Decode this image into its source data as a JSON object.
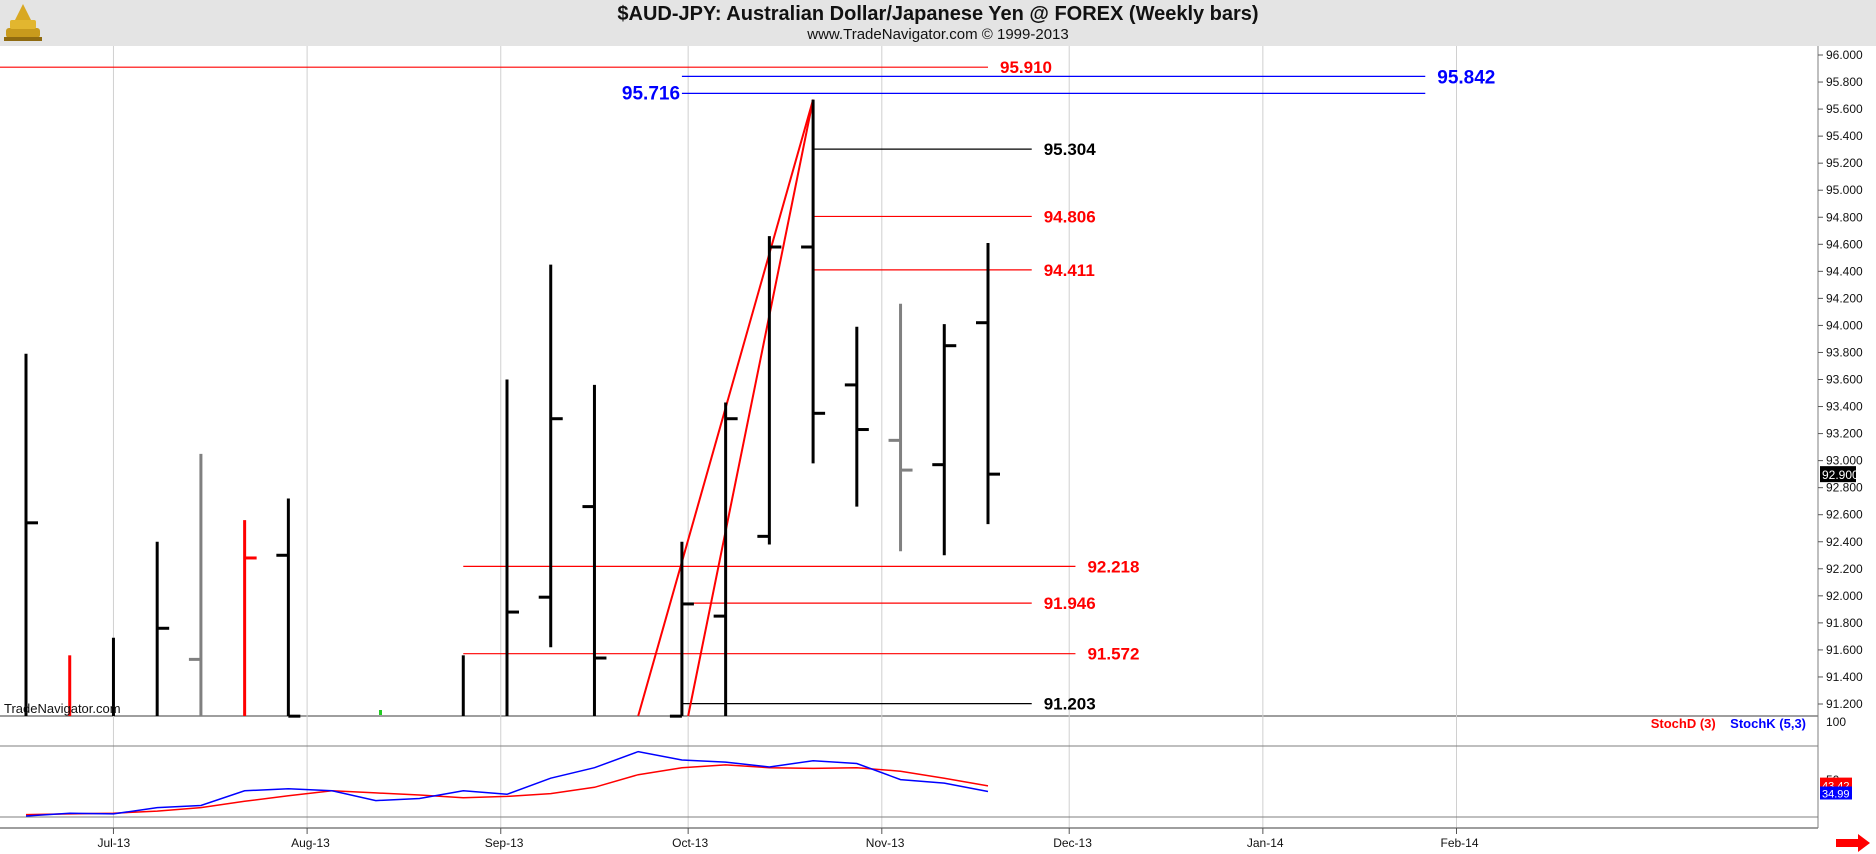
{
  "header": {
    "title": "$AUD-JPY:  Australian Dollar/Japanese Yen @ FOREX  (Weekly bars)",
    "subtitle": "www.TradeNavigator.com © 1999-2013"
  },
  "watermark": "TradeNavigator.com",
  "colors": {
    "bar": "#000000",
    "down_bar": "#ff0000",
    "neutral_bar": "#808080",
    "level_red": "#ff0000",
    "level_blue": "#0000ff",
    "level_black": "#000000",
    "header_bg": "#e4e4e4"
  },
  "indicator_legend": {
    "stoch_d": "StochD (3)",
    "stoch_k": "StochK (5,3)"
  },
  "chart_data": [
    {
      "type": "ohlc",
      "title": "$AUD-JPY:  Australian Dollar/Japanese Yen @ FOREX  (Weekly bars)",
      "x_tick_labels": [
        "Jul-13",
        "Aug-13",
        "Sep-13",
        "Oct-13",
        "Nov-13",
        "Dec-13",
        "Jan-14",
        "Feb-14"
      ],
      "y_tick_labels": [
        "96.000",
        "95.800",
        "95.600",
        "95.400",
        "95.200",
        "95.000",
        "94.800",
        "94.600",
        "94.400",
        "94.200",
        "94.000",
        "93.800",
        "93.600",
        "93.400",
        "93.200",
        "93.000",
        "92.800",
        "92.600",
        "92.400",
        "92.200",
        "92.000",
        "91.800",
        "91.600",
        "91.400",
        "91.200"
      ],
      "ylim": [
        91.08,
        96.08
      ],
      "last_price_label": "92.900",
      "bars": [
        {
          "week": "2013-06-17",
          "open": null,
          "high": 93.79,
          "low": 91.08,
          "close": 92.54,
          "color": "black"
        },
        {
          "week": "2013-06-24",
          "open": null,
          "high": 91.56,
          "low": 91.08,
          "close": null,
          "color": "red"
        },
        {
          "week": "2013-07-01",
          "open": null,
          "high": 91.69,
          "low": 91.08,
          "close": null,
          "color": "black"
        },
        {
          "week": "2013-07-08",
          "open": null,
          "high": 92.4,
          "low": 91.08,
          "close": 91.76,
          "color": "black"
        },
        {
          "week": "2013-07-15",
          "open": 91.53,
          "high": 93.05,
          "low": 91.08,
          "close": null,
          "color": "gray"
        },
        {
          "week": "2013-07-22",
          "open": null,
          "high": 92.56,
          "low": 91.08,
          "close": 92.28,
          "color": "red"
        },
        {
          "week": "2013-07-29",
          "open": 92.3,
          "high": 92.72,
          "low": 91.08,
          "close": 91.11,
          "color": "black"
        },
        {
          "week": "2013-08-26",
          "open": null,
          "high": 91.56,
          "low": 91.08,
          "close": null,
          "color": "black"
        },
        {
          "week": "2013-09-02",
          "open": null,
          "high": 93.6,
          "low": 91.08,
          "close": 91.88,
          "color": "black"
        },
        {
          "week": "2013-09-09",
          "open": 91.99,
          "high": 94.45,
          "low": 91.62,
          "close": 93.31,
          "color": "black"
        },
        {
          "week": "2013-09-16",
          "open": 92.66,
          "high": 93.56,
          "low": 91.08,
          "close": 91.54,
          "color": "black"
        },
        {
          "week": "2013-09-30",
          "open": 91.11,
          "high": 92.4,
          "low": 91.08,
          "close": 91.94,
          "color": "black"
        },
        {
          "week": "2013-10-07",
          "open": 91.85,
          "high": 93.43,
          "low": 91.08,
          "close": 93.31,
          "color": "black"
        },
        {
          "week": "2013-10-14",
          "open": 92.44,
          "high": 94.66,
          "low": 92.38,
          "close": 94.58,
          "color": "black"
        },
        {
          "week": "2013-10-21",
          "open": 94.58,
          "high": 95.67,
          "low": 92.98,
          "close": 93.35,
          "color": "black"
        },
        {
          "week": "2013-10-28",
          "open": 93.56,
          "high": 93.99,
          "low": 92.66,
          "close": 93.23,
          "color": "black"
        },
        {
          "week": "2013-11-04",
          "open": 93.15,
          "high": 94.16,
          "low": 92.33,
          "close": 92.93,
          "color": "gray"
        },
        {
          "week": "2013-11-11",
          "open": 92.97,
          "high": 94.01,
          "low": 92.3,
          "close": 93.85,
          "color": "black"
        },
        {
          "week": "2013-11-18",
          "open": 94.02,
          "high": 94.61,
          "low": 92.53,
          "close": 92.9,
          "color": "black"
        }
      ],
      "levels": [
        {
          "value": 95.91,
          "label": "95.910",
          "color": "red",
          "from": "2013-06-10",
          "to": "2013-11-18"
        },
        {
          "value": 95.842,
          "label": "95.842",
          "color": "blue",
          "from": "2013-09-30",
          "to": "2014-01-27"
        },
        {
          "value": 95.716,
          "label": "95.716",
          "color": "blue",
          "from": "2013-09-30",
          "to": "2014-01-27"
        },
        {
          "value": 95.304,
          "label": "95.304",
          "color": "black",
          "from": "2013-10-21",
          "to": "2013-11-25"
        },
        {
          "value": 94.806,
          "label": "94.806",
          "color": "red",
          "from": "2013-10-21",
          "to": "2013-11-25"
        },
        {
          "value": 94.411,
          "label": "94.411",
          "color": "red",
          "from": "2013-10-21",
          "to": "2013-11-25"
        },
        {
          "value": 92.218,
          "label": "92.218",
          "color": "red",
          "from": "2013-08-26",
          "to": "2013-12-02"
        },
        {
          "value": 91.946,
          "label": "91.946",
          "color": "red",
          "from": "2013-09-30",
          "to": "2013-11-25"
        },
        {
          "value": 91.572,
          "label": "91.572",
          "color": "red",
          "from": "2013-08-26",
          "to": "2013-12-02"
        },
        {
          "value": 91.203,
          "label": "91.203",
          "color": "black",
          "from": "2013-09-30",
          "to": "2013-11-25"
        }
      ],
      "trendlines": [
        {
          "from": [
            "2013-09-23",
            91.08
          ],
          "to": [
            "2013-10-21",
            95.67
          ],
          "color": "red"
        },
        {
          "from": [
            "2013-10-01",
            91.08
          ],
          "to": [
            "2013-10-21",
            95.67
          ],
          "color": "red"
        }
      ]
    },
    {
      "type": "line",
      "title": "Stochastic",
      "x_tick_labels": [
        "Jul-13",
        "Aug-13",
        "Sep-13",
        "Oct-13",
        "Nov-13",
        "Dec-13",
        "Jan-14",
        "Feb-14"
      ],
      "ylim": [
        0,
        100
      ],
      "y_tick_labels": [
        "100",
        "50"
      ],
      "last_value_labels": {
        "stoch_d": "43.42",
        "stoch_k": "34.99"
      },
      "series": [
        {
          "name": "StochD (3)",
          "color": "red",
          "x": [
            "2013-06-17",
            "2013-06-24",
            "2013-07-01",
            "2013-07-08",
            "2013-07-15",
            "2013-07-22",
            "2013-07-29",
            "2013-08-05",
            "2013-08-12",
            "2013-08-19",
            "2013-08-26",
            "2013-09-02",
            "2013-09-09",
            "2013-09-16",
            "2013-09-23",
            "2013-09-30",
            "2013-10-07",
            "2013-10-14",
            "2013-10-21",
            "2013-10-28",
            "2013-11-04",
            "2013-11-11",
            "2013-11-18"
          ],
          "values": [
            2,
            3,
            4,
            7,
            12,
            21,
            29,
            36,
            33,
            30,
            26,
            28,
            32,
            41,
            59,
            69,
            73,
            69,
            68,
            69,
            64,
            54,
            43
          ]
        },
        {
          "name": "StochK (5,3)",
          "color": "blue",
          "x": [
            "2013-06-17",
            "2013-06-24",
            "2013-07-01",
            "2013-07-08",
            "2013-07-15",
            "2013-07-22",
            "2013-07-29",
            "2013-08-05",
            "2013-08-12",
            "2013-08-19",
            "2013-08-26",
            "2013-09-02",
            "2013-09-09",
            "2013-09-16",
            "2013-09-23",
            "2013-09-30",
            "2013-10-07",
            "2013-10-14",
            "2013-10-21",
            "2013-10-28",
            "2013-11-04",
            "2013-11-11",
            "2013-11-18"
          ],
          "values": [
            0,
            4,
            3,
            12,
            15,
            36,
            39,
            36,
            22,
            25,
            36,
            31,
            54,
            69,
            92,
            80,
            77,
            70,
            79,
            75,
            52,
            47,
            35
          ]
        }
      ]
    }
  ]
}
